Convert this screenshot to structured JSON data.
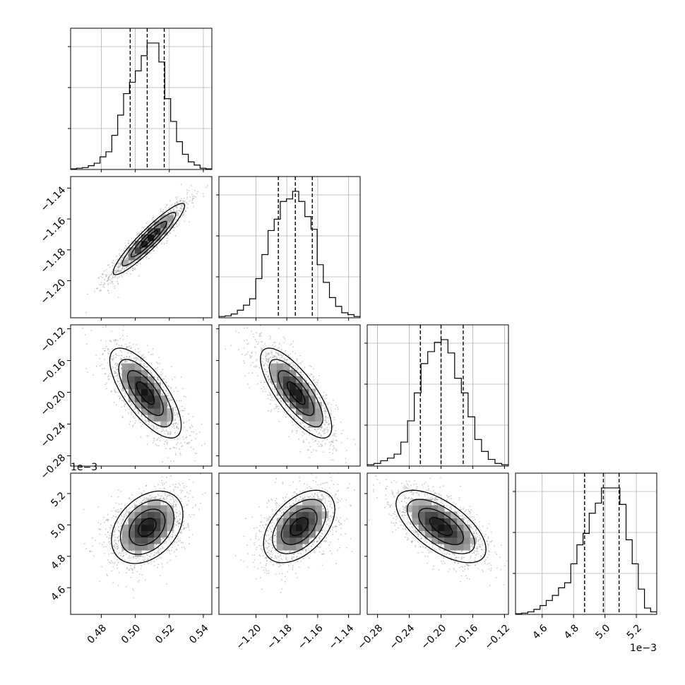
{
  "chart_data": {
    "type": "corner",
    "description_params": 4,
    "offset_text": "1e−3",
    "params": [
      {
        "range": [
          0.462,
          0.545
        ],
        "quantiles": [
          0.497,
          0.507,
          0.517
        ],
        "ticks": [
          0.48,
          0.5,
          0.52,
          0.54
        ],
        "tick_labels": [
          "0.48",
          "0.50",
          "0.52",
          "0.54"
        ],
        "hist": [
          0.005,
          0.01,
          0.015,
          0.03,
          0.05,
          0.1,
          0.14,
          0.27,
          0.43,
          0.6,
          0.69,
          0.78,
          0.9,
          1.0,
          1.0,
          0.85,
          0.56,
          0.38,
          0.22,
          0.12,
          0.06,
          0.035,
          0.01,
          0.005
        ]
      },
      {
        "range": [
          -1.224,
          -1.1325
        ],
        "quantiles": [
          -1.1855,
          -1.1745,
          -1.1635
        ],
        "ticks": [
          -1.2,
          -1.18,
          -1.16,
          -1.14
        ],
        "tick_labels": [
          "−1.20",
          "−1.18",
          "−1.16",
          "−1.14"
        ],
        "hist": [
          0.01,
          0.015,
          0.03,
          0.06,
          0.1,
          0.15,
          0.31,
          0.5,
          0.69,
          0.78,
          0.92,
          0.94,
          1.0,
          0.92,
          0.8,
          0.7,
          0.42,
          0.28,
          0.16,
          0.09,
          0.04,
          0.025,
          0.01
        ]
      },
      {
        "range": [
          -0.293,
          -0.115
        ],
        "quantiles": [
          -0.226,
          -0.2,
          -0.172
        ],
        "ticks": [
          -0.28,
          -0.24,
          -0.2,
          -0.16,
          -0.12
        ],
        "tick_labels": [
          "−0.28",
          "−0.24",
          "−0.20",
          "−0.16",
          "−0.12"
        ],
        "hist": [
          0.01,
          0.02,
          0.04,
          0.06,
          0.09,
          0.18,
          0.34,
          0.55,
          0.77,
          0.86,
          0.93,
          0.95,
          0.85,
          0.66,
          0.55,
          0.37,
          0.2,
          0.11,
          0.05,
          0.02,
          0.01
        ]
      },
      {
        "range": [
          4.43,
          5.33
        ],
        "quantiles": [
          4.87,
          4.99,
          5.09
        ],
        "ticks": [
          4.6,
          4.8,
          5.0,
          5.2
        ],
        "tick_labels": [
          "4.6",
          "4.8",
          "5.0",
          "5.2"
        ],
        "hist": [
          0.005,
          0.01,
          0.02,
          0.04,
          0.07,
          0.11,
          0.15,
          0.21,
          0.25,
          0.4,
          0.55,
          0.64,
          0.8,
          0.88,
          1.0,
          1.0,
          1.0,
          0.87,
          0.59,
          0.4,
          0.2,
          0.05,
          0.02
        ]
      }
    ],
    "pairs": [
      {
        "row": 1,
        "col": 0,
        "correlation": 0.93,
        "center": [
          0.508,
          -1.173
        ]
      },
      {
        "row": 2,
        "col": 0,
        "correlation": -0.72,
        "center": [
          0.506,
          -0.201
        ]
      },
      {
        "row": 2,
        "col": 1,
        "correlation": -0.76,
        "center": [
          -1.174,
          -0.201
        ]
      },
      {
        "row": 3,
        "col": 0,
        "correlation": 0.35,
        "center": [
          0.507,
          4.985
        ]
      },
      {
        "row": 3,
        "col": 1,
        "correlation": 0.47,
        "center": [
          -1.172,
          4.99
        ]
      },
      {
        "row": 3,
        "col": 2,
        "correlation": -0.63,
        "center": [
          -0.2,
          4.99
        ]
      }
    ],
    "grid": true,
    "contour_levels": [
      0.5,
      1.0,
      1.5,
      2.0
    ],
    "colors": {
      "line": "#000000",
      "points": "#9a9a9a",
      "grid": "#b0b0b0"
    }
  }
}
